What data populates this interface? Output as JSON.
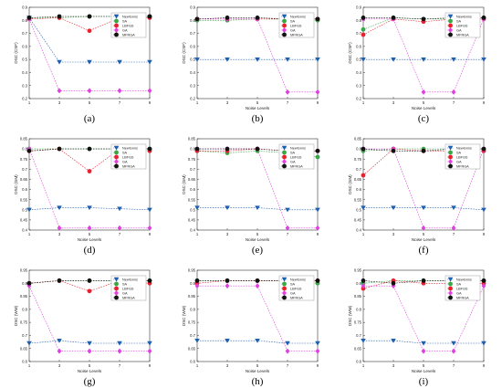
{
  "figure": {
    "caption_labels": [
      "(a)",
      "(b)",
      "(c)",
      "(d)",
      "(e)",
      "(f)",
      "(g)",
      "(h)",
      "(i)"
    ]
  },
  "series_style": [
    {
      "name": "Newtonns",
      "color": "#1f5fb0",
      "marker": "triangle-down"
    },
    {
      "name": "SA",
      "color": "#3aa64a",
      "marker": "circle"
    },
    {
      "name": "LBFGS",
      "color": "#e8212e",
      "marker": "circle"
    },
    {
      "name": "GA",
      "color": "#e040e0",
      "marker": "diamond"
    },
    {
      "name": "MFRGA",
      "color": "#111111",
      "marker": "circle"
    }
  ],
  "chart_data": [
    {
      "type": "line",
      "panel": "(a)",
      "xlabel": "",
      "ylabel": "DSC (CSF)",
      "x": [
        1,
        3,
        5,
        7,
        9
      ],
      "xlim": [
        1,
        9
      ],
      "ylim": [
        0.2,
        0.9
      ],
      "yticks": [
        0.2,
        0.3,
        0.4,
        0.5,
        0.6,
        0.7,
        0.8,
        0.9
      ],
      "series": [
        {
          "name": "Newtonns",
          "values": [
            0.82,
            0.48,
            0.48,
            0.48,
            0.48
          ]
        },
        {
          "name": "SA",
          "values": [
            0.82,
            0.82,
            0.83,
            0.83,
            0.83
          ]
        },
        {
          "name": "LBFGS",
          "values": [
            0.81,
            0.82,
            0.72,
            0.82,
            0.82
          ]
        },
        {
          "name": "GA",
          "values": [
            0.81,
            0.26,
            0.26,
            0.26,
            0.26
          ]
        },
        {
          "name": "MFRGA",
          "values": [
            0.82,
            0.83,
            0.83,
            0.83,
            0.83
          ]
        }
      ]
    },
    {
      "type": "line",
      "panel": "(b)",
      "xlabel": "Noise Levels",
      "ylabel": "DSC (CSF)",
      "x": [
        1,
        3,
        5,
        7,
        9
      ],
      "xlim": [
        1,
        9
      ],
      "ylim": [
        0.2,
        0.9
      ],
      "yticks": [
        0.2,
        0.3,
        0.4,
        0.5,
        0.6,
        0.7,
        0.8,
        0.9
      ],
      "series": [
        {
          "name": "Newtonns",
          "values": [
            0.5,
            0.5,
            0.5,
            0.5,
            0.5
          ]
        },
        {
          "name": "SA",
          "values": [
            0.8,
            0.8,
            0.81,
            0.81,
            0.8
          ]
        },
        {
          "name": "LBFGS",
          "values": [
            0.81,
            0.81,
            0.81,
            0.81,
            0.81
          ]
        },
        {
          "name": "GA",
          "values": [
            0.81,
            0.81,
            0.81,
            0.25,
            0.25
          ]
        },
        {
          "name": "MFRGA",
          "values": [
            0.81,
            0.82,
            0.82,
            0.81,
            0.81
          ]
        }
      ]
    },
    {
      "type": "line",
      "panel": "(c)",
      "xlabel": "Noise Levels",
      "ylabel": "DSC (CSF)",
      "x": [
        1,
        3,
        5,
        7,
        9
      ],
      "xlim": [
        1,
        9
      ],
      "ylim": [
        0.2,
        0.9
      ],
      "yticks": [
        0.2,
        0.3,
        0.4,
        0.5,
        0.6,
        0.7,
        0.8,
        0.9
      ],
      "series": [
        {
          "name": "Newtonns",
          "values": [
            0.5,
            0.5,
            0.5,
            0.5,
            0.5
          ]
        },
        {
          "name": "SA",
          "values": [
            0.73,
            0.82,
            0.81,
            0.81,
            0.82
          ]
        },
        {
          "name": "LBFGS",
          "values": [
            0.69,
            0.81,
            0.79,
            0.81,
            0.81
          ]
        },
        {
          "name": "GA",
          "values": [
            0.81,
            0.81,
            0.25,
            0.25,
            0.81
          ]
        },
        {
          "name": "MFRGA",
          "values": [
            0.82,
            0.82,
            0.81,
            0.82,
            0.82
          ]
        }
      ]
    },
    {
      "type": "line",
      "panel": "(d)",
      "xlabel": "Noise Levels",
      "ylabel": "DSC (GM)",
      "x": [
        1,
        3,
        5,
        7,
        9
      ],
      "xlim": [
        1,
        9
      ],
      "ylim": [
        0.4,
        0.85
      ],
      "yticks": [
        0.4,
        0.45,
        0.5,
        0.55,
        0.6,
        0.65,
        0.7,
        0.75,
        0.8,
        0.85
      ],
      "series": [
        {
          "name": "Newtonns",
          "values": [
            0.5,
            0.51,
            0.51,
            0.505,
            0.5
          ]
        },
        {
          "name": "SA",
          "values": [
            0.8,
            0.8,
            0.8,
            0.8,
            0.8
          ]
        },
        {
          "name": "LBFGS",
          "values": [
            0.79,
            0.8,
            0.69,
            0.8,
            0.79
          ]
        },
        {
          "name": "GA",
          "values": [
            0.8,
            0.41,
            0.41,
            0.41,
            0.41
          ]
        },
        {
          "name": "MFRGA",
          "values": [
            0.79,
            0.8,
            0.8,
            0.8,
            0.8
          ]
        }
      ]
    },
    {
      "type": "line",
      "panel": "(e)",
      "xlabel": "Noise Levels",
      "ylabel": "DSC (GM)",
      "x": [
        1,
        3,
        5,
        7,
        9
      ],
      "xlim": [
        1,
        9
      ],
      "ylim": [
        0.4,
        0.85
      ],
      "yticks": [
        0.4,
        0.45,
        0.5,
        0.55,
        0.6,
        0.65,
        0.7,
        0.75,
        0.8,
        0.85
      ],
      "series": [
        {
          "name": "Newtonns",
          "values": [
            0.51,
            0.51,
            0.51,
            0.5,
            0.5
          ]
        },
        {
          "name": "SA",
          "values": [
            0.79,
            0.78,
            0.79,
            0.78,
            0.76
          ]
        },
        {
          "name": "LBFGS",
          "values": [
            0.79,
            0.79,
            0.8,
            0.79,
            0.79
          ]
        },
        {
          "name": "GA",
          "values": [
            0.8,
            0.8,
            0.8,
            0.41,
            0.41
          ]
        },
        {
          "name": "MFRGA",
          "values": [
            0.8,
            0.8,
            0.8,
            0.79,
            0.79
          ]
        }
      ]
    },
    {
      "type": "line",
      "panel": "(f)",
      "xlabel": "Noise Levels",
      "ylabel": "DSC (GM)",
      "x": [
        1,
        3,
        5,
        7,
        9
      ],
      "xlim": [
        1,
        9
      ],
      "ylim": [
        0.4,
        0.85
      ],
      "yticks": [
        0.4,
        0.45,
        0.5,
        0.55,
        0.6,
        0.65,
        0.7,
        0.75,
        0.8,
        0.85
      ],
      "series": [
        {
          "name": "Newtonns",
          "values": [
            0.51,
            0.51,
            0.51,
            0.51,
            0.5
          ]
        },
        {
          "name": "SA",
          "values": [
            0.79,
            0.8,
            0.8,
            0.8,
            0.8
          ]
        },
        {
          "name": "LBFGS",
          "values": [
            0.67,
            0.8,
            0.79,
            0.79,
            0.79
          ]
        },
        {
          "name": "GA",
          "values": [
            0.8,
            0.8,
            0.41,
            0.41,
            0.8
          ]
        },
        {
          "name": "MFRGA",
          "values": [
            0.8,
            0.79,
            0.79,
            0.8,
            0.8
          ]
        }
      ]
    },
    {
      "type": "line",
      "panel": "(g)",
      "xlabel": "Noise Levels",
      "ylabel": "DSC (WM)",
      "x": [
        1,
        3,
        5,
        7,
        9
      ],
      "xlim": [
        1,
        9
      ],
      "ylim": [
        0.6,
        0.95
      ],
      "yticks": [
        0.6,
        0.65,
        0.7,
        0.75,
        0.8,
        0.85,
        0.9,
        0.95
      ],
      "series": [
        {
          "name": "Newtonns",
          "values": [
            0.67,
            0.68,
            0.67,
            0.67,
            0.67
          ]
        },
        {
          "name": "SA",
          "values": [
            0.9,
            0.91,
            0.91,
            0.91,
            0.91
          ]
        },
        {
          "name": "LBFGS",
          "values": [
            0.9,
            0.91,
            0.87,
            0.91,
            0.9
          ]
        },
        {
          "name": "GA",
          "values": [
            0.89,
            0.64,
            0.64,
            0.64,
            0.64
          ]
        },
        {
          "name": "MFRGA",
          "values": [
            0.9,
            0.91,
            0.91,
            0.91,
            0.91
          ]
        }
      ]
    },
    {
      "type": "line",
      "panel": "(h)",
      "xlabel": "Noise Levels",
      "ylabel": "DSC (WM)",
      "x": [
        1,
        3,
        5,
        7,
        9
      ],
      "xlim": [
        1,
        9
      ],
      "ylim": [
        0.6,
        0.95
      ],
      "yticks": [
        0.6,
        0.65,
        0.7,
        0.75,
        0.8,
        0.85,
        0.9,
        0.95
      ],
      "series": [
        {
          "name": "Newtonns",
          "values": [
            0.68,
            0.68,
            0.68,
            0.67,
            0.67
          ]
        },
        {
          "name": "SA",
          "values": [
            0.91,
            0.91,
            0.91,
            0.91,
            0.9
          ]
        },
        {
          "name": "LBFGS",
          "values": [
            0.9,
            0.91,
            0.91,
            0.91,
            0.91
          ]
        },
        {
          "name": "GA",
          "values": [
            0.89,
            0.89,
            0.89,
            0.64,
            0.64
          ]
        },
        {
          "name": "MFRGA",
          "values": [
            0.91,
            0.91,
            0.91,
            0.91,
            0.91
          ]
        }
      ]
    },
    {
      "type": "line",
      "panel": "(i)",
      "xlabel": "Noise Levels",
      "ylabel": "DSC (WM)",
      "x": [
        1,
        3,
        5,
        7,
        9
      ],
      "xlim": [
        1,
        9
      ],
      "ylim": [
        0.6,
        0.95
      ],
      "yticks": [
        0.6,
        0.65,
        0.7,
        0.75,
        0.8,
        0.85,
        0.9,
        0.95
      ],
      "series": [
        {
          "name": "Newtonns",
          "values": [
            0.68,
            0.68,
            0.67,
            0.67,
            0.67
          ]
        },
        {
          "name": "SA",
          "values": [
            0.9,
            0.91,
            0.91,
            0.91,
            0.91
          ]
        },
        {
          "name": "LBFGS",
          "values": [
            0.88,
            0.91,
            0.9,
            0.9,
            0.9
          ]
        },
        {
          "name": "GA",
          "values": [
            0.89,
            0.89,
            0.64,
            0.64,
            0.89
          ]
        },
        {
          "name": "MFRGA",
          "values": [
            0.91,
            0.9,
            0.91,
            0.91,
            0.91
          ]
        }
      ]
    }
  ]
}
